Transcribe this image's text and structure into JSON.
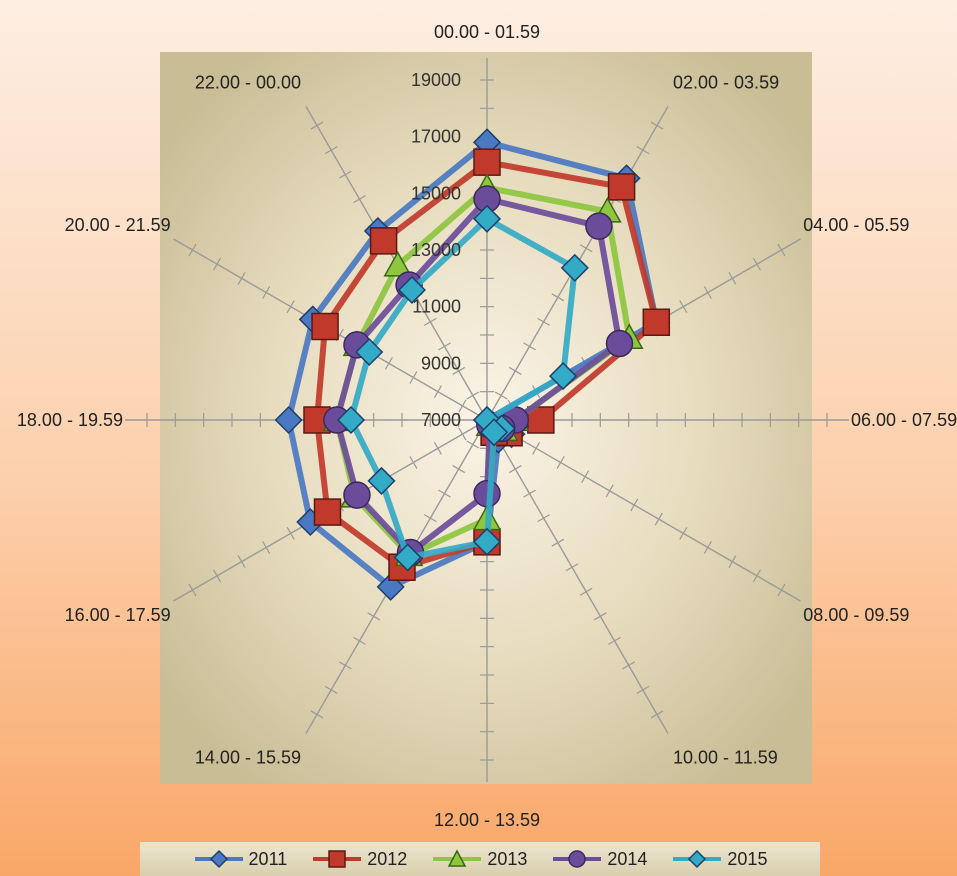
{
  "chart_data": {
    "type": "radar",
    "title": "",
    "categories": [
      "00.00 - 01.59",
      "02.00 - 03.59",
      "04.00 - 05.59",
      "06.00 - 07.59",
      "08.00 - 09.59",
      "10.00 - 11.59",
      "12.00 - 13.59",
      "14.00 - 15.59",
      "16.00 - 17.59",
      "18.00 - 19.59",
      "20.00 - 21.59",
      "22.00 - 00.00"
    ],
    "radial_ticks": [
      "7000",
      "9000",
      "11000",
      "13000",
      "15000",
      "17000",
      "19000"
    ],
    "rlim": [
      7000,
      19000
    ],
    "grid": true,
    "legend_position": "bottom",
    "series": [
      {
        "name": "2011",
        "color": "#4a78c2",
        "marker": "diamond",
        "values": [
          16800,
          16850,
          13900,
          7000,
          8000,
          7800,
          11300,
          13800,
          14200,
          14000,
          14100,
          14700
        ]
      },
      {
        "name": "2012",
        "color": "#c0392b",
        "marker": "square",
        "values": [
          16100,
          16500,
          13900,
          8900,
          7900,
          7500,
          11300,
          13000,
          13500,
          13000,
          13600,
          14300
        ]
      },
      {
        "name": "2013",
        "color": "#8dc63f",
        "marker": "triangle",
        "values": [
          15200,
          15500,
          12800,
          8000,
          7700,
          7200,
          10500,
          12500,
          12400,
          12300,
          12300,
          13300
        ]
      },
      {
        "name": "2014",
        "color": "#6b4c9a",
        "marker": "circle",
        "values": [
          14800,
          14900,
          12400,
          8000,
          7600,
          7200,
          9600,
          12400,
          12300,
          12300,
          12300,
          12500
        ]
      },
      {
        "name": "2015",
        "color": "#33aac6",
        "marker": "diamond",
        "values": [
          14100,
          13200,
          10100,
          7000,
          7600,
          7500,
          11300,
          12600,
          11300,
          11800,
          11800,
          12300
        ]
      }
    ]
  }
}
